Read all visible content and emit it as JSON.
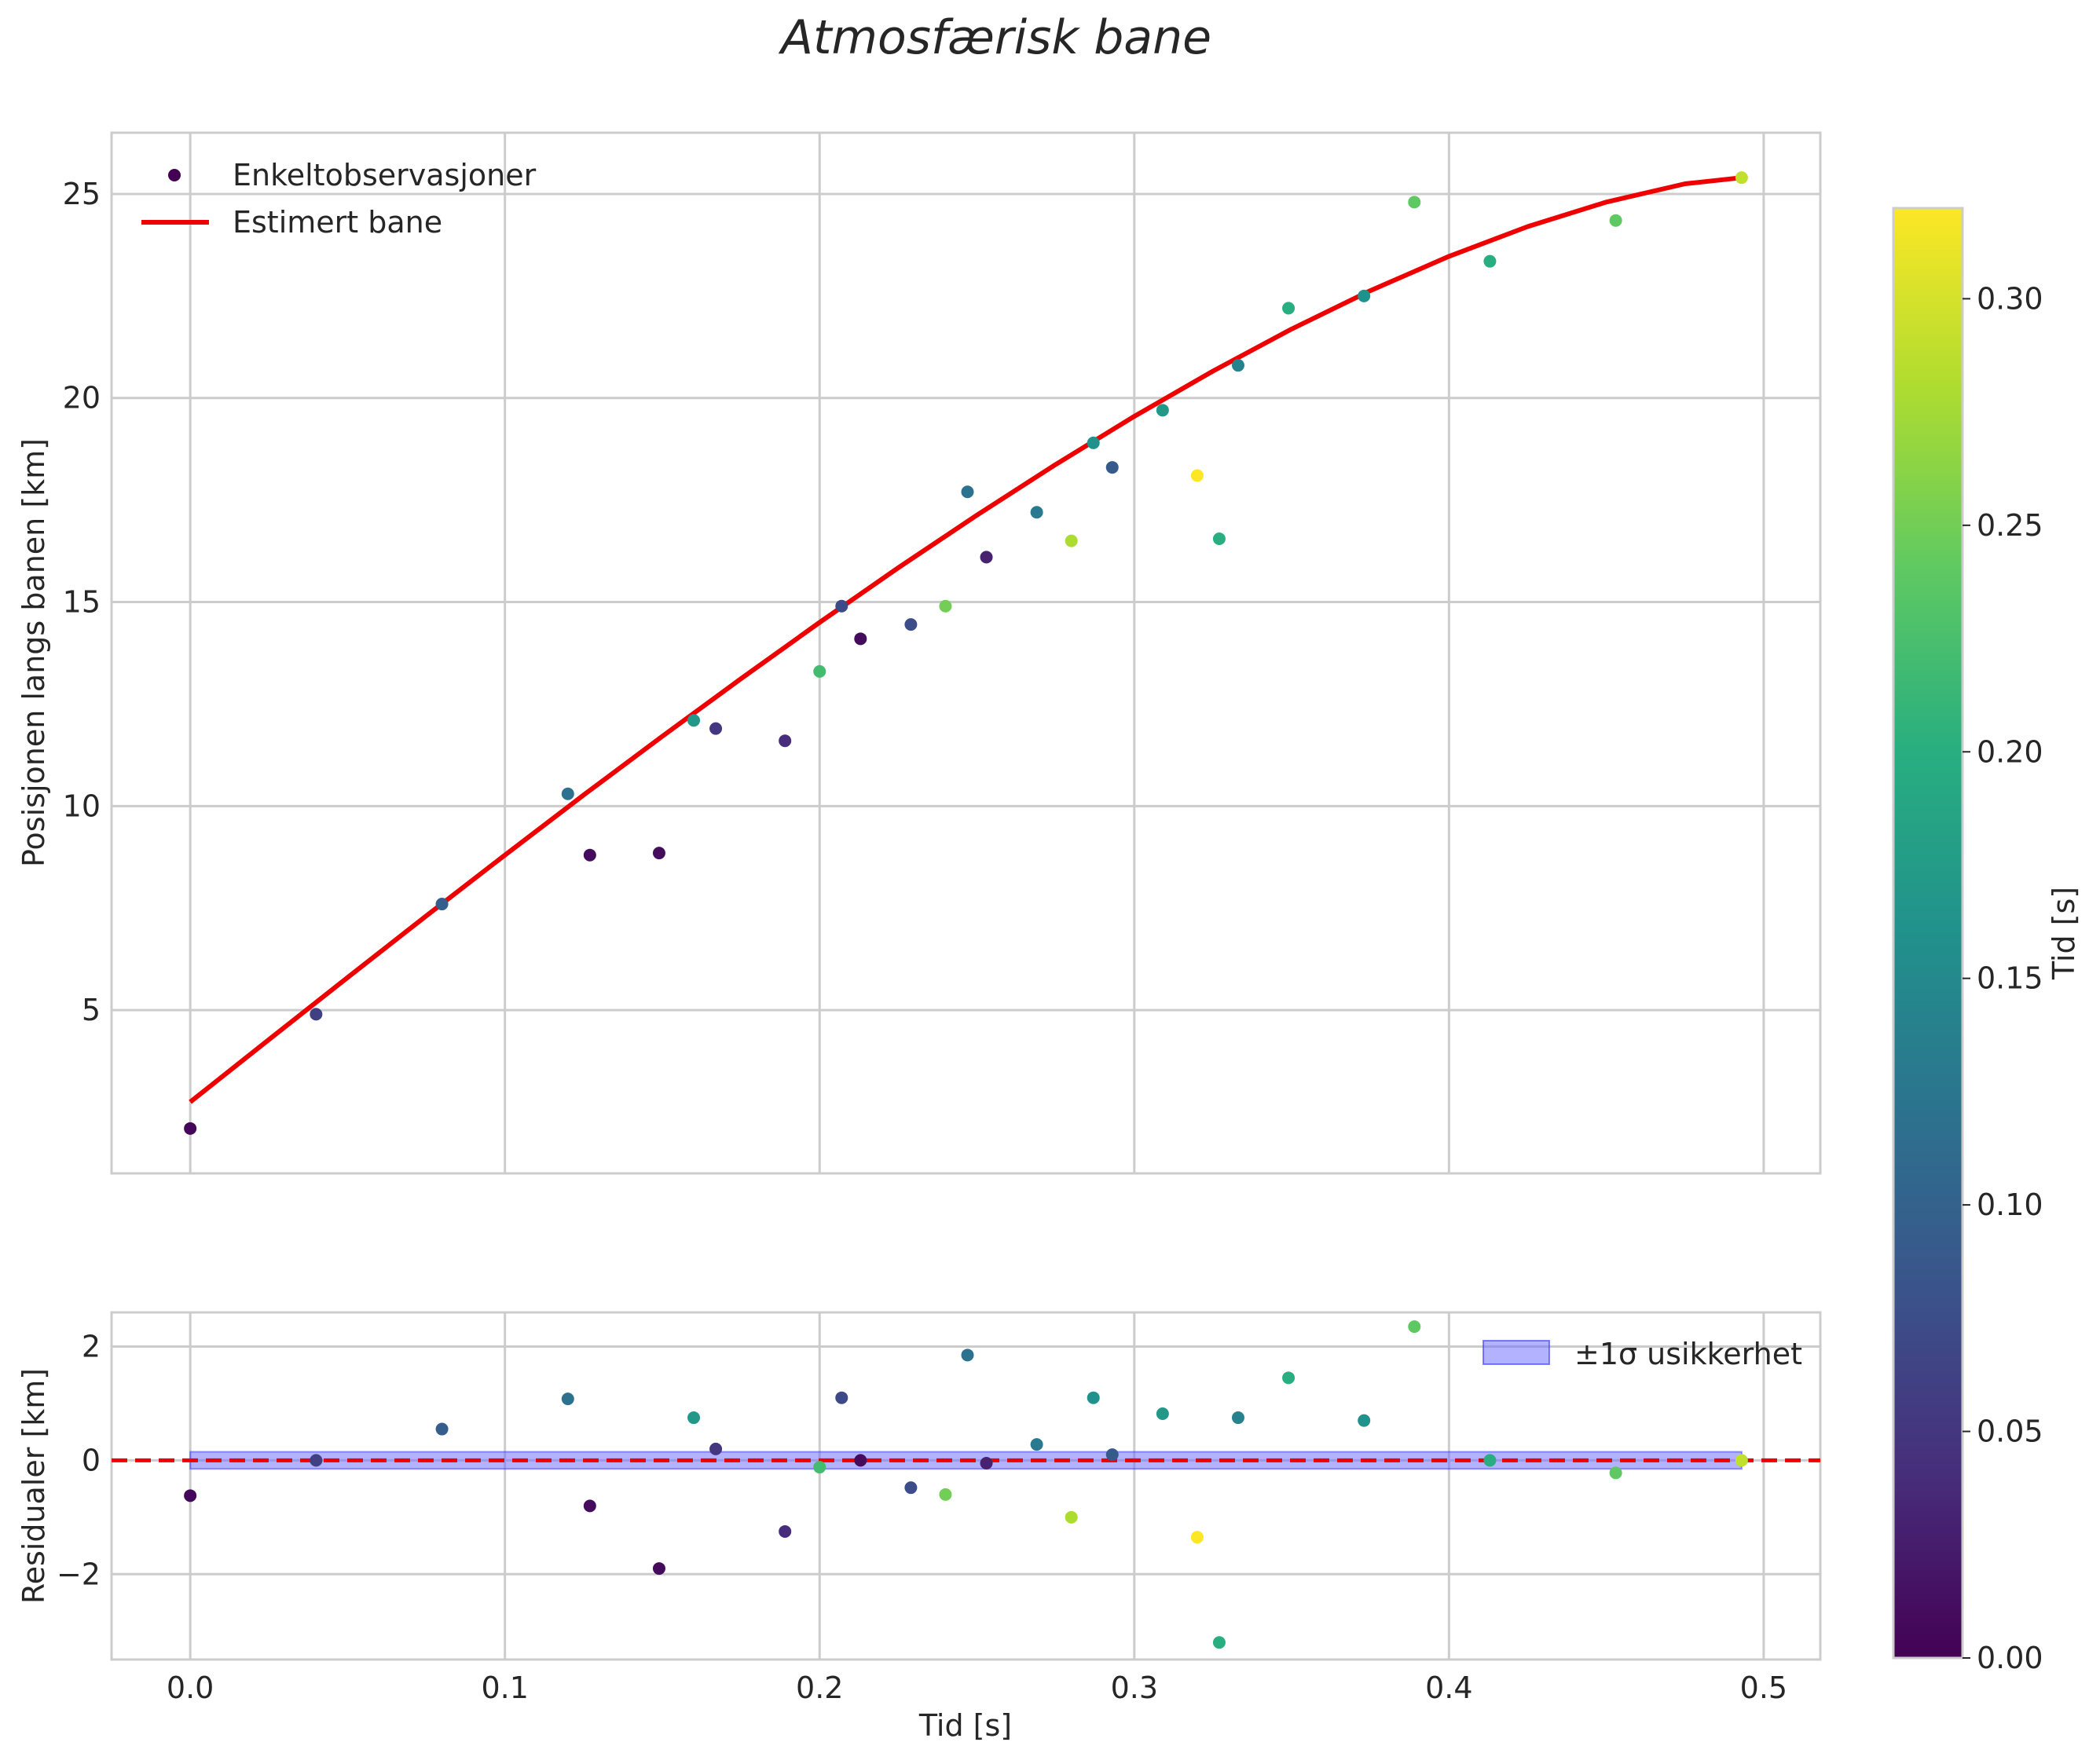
{
  "chart_data": {
    "title": "Atmosfærisk bane",
    "type": "scatter",
    "points": [
      {
        "t": 0.0,
        "pos": 2.1,
        "res": -0.62,
        "c": 0.005
      },
      {
        "t": 0.04,
        "pos": 4.9,
        "res": 0.0,
        "c": 0.06
      },
      {
        "t": 0.08,
        "pos": 7.6,
        "res": 0.55,
        "c": 0.095
      },
      {
        "t": 0.12,
        "pos": 10.3,
        "res": 1.08,
        "c": 0.12
      },
      {
        "t": 0.127,
        "pos": 8.8,
        "res": -0.8,
        "c": 0.01
      },
      {
        "t": 0.149,
        "pos": 8.85,
        "res": -1.9,
        "c": 0.01
      },
      {
        "t": 0.16,
        "pos": 12.1,
        "res": 0.75,
        "c": 0.17
      },
      {
        "t": 0.167,
        "pos": 11.9,
        "res": 0.2,
        "c": 0.05
      },
      {
        "t": 0.189,
        "pos": 11.6,
        "res": -1.25,
        "c": 0.04
      },
      {
        "t": 0.2,
        "pos": 13.3,
        "res": -0.12,
        "c": 0.22
      },
      {
        "t": 0.207,
        "pos": 14.9,
        "res": 1.1,
        "c": 0.07
      },
      {
        "t": 0.213,
        "pos": 14.1,
        "res": 0.0,
        "c": 0.01
      },
      {
        "t": 0.229,
        "pos": 14.45,
        "res": -0.48,
        "c": 0.075
      },
      {
        "t": 0.24,
        "pos": 14.9,
        "res": -0.6,
        "c": 0.25
      },
      {
        "t": 0.247,
        "pos": 17.7,
        "res": 1.85,
        "c": 0.12
      },
      {
        "t": 0.253,
        "pos": 16.1,
        "res": -0.05,
        "c": 0.03
      },
      {
        "t": 0.269,
        "pos": 17.2,
        "res": 0.28,
        "c": 0.13
      },
      {
        "t": 0.28,
        "pos": 16.5,
        "res": -1.0,
        "c": 0.28
      },
      {
        "t": 0.287,
        "pos": 18.9,
        "res": 1.1,
        "c": 0.16
      },
      {
        "t": 0.293,
        "pos": 18.3,
        "res": 0.1,
        "c": 0.09
      },
      {
        "t": 0.309,
        "pos": 19.7,
        "res": 0.82,
        "c": 0.17
      },
      {
        "t": 0.32,
        "pos": 18.1,
        "res": -1.35,
        "c": 0.32
      },
      {
        "t": 0.327,
        "pos": 16.55,
        "res": -3.2,
        "c": 0.2
      },
      {
        "t": 0.333,
        "pos": 20.8,
        "res": 0.75,
        "c": 0.14
      },
      {
        "t": 0.349,
        "pos": 22.2,
        "res": 1.45,
        "c": 0.2
      },
      {
        "t": 0.373,
        "pos": 22.5,
        "res": 0.7,
        "c": 0.16
      },
      {
        "t": 0.389,
        "pos": 24.8,
        "res": 2.35,
        "c": 0.24
      },
      {
        "t": 0.413,
        "pos": 23.35,
        "res": 0.0,
        "c": 0.2
      },
      {
        "t": 0.453,
        "pos": 24.35,
        "res": -0.22,
        "c": 0.24
      },
      {
        "t": 0.493,
        "pos": 25.4,
        "res": 0.0,
        "c": 0.29
      }
    ],
    "fit_curve": {
      "name": "Estimert bane",
      "x": [
        0.0,
        0.025,
        0.05,
        0.075,
        0.1,
        0.125,
        0.15,
        0.175,
        0.2,
        0.225,
        0.25,
        0.275,
        0.3,
        0.325,
        0.35,
        0.375,
        0.4,
        0.425,
        0.45,
        0.475,
        0.493
      ],
      "y": [
        2.75,
        4.28,
        5.8,
        7.31,
        8.8,
        10.27,
        11.71,
        13.12,
        14.5,
        15.84,
        17.13,
        18.37,
        19.55,
        20.66,
        21.69,
        22.63,
        23.47,
        24.2,
        24.8,
        25.25,
        25.4
      ]
    },
    "top": {
      "ylabel": "Posisjonen langs banen [km]",
      "ylim": [
        1.0,
        26.5
      ],
      "yticks": [
        "5",
        "10",
        "15",
        "20",
        "25"
      ],
      "legend": {
        "scatter": "Enkeltobservasjoner",
        "line": "Estimert bane"
      }
    },
    "bottom": {
      "ylabel": "Residualer [km]",
      "ylim": [
        -3.5,
        2.6
      ],
      "yticks": [
        "−2",
        "0",
        "2"
      ],
      "band_sigma": 0.15,
      "legend": {
        "band": "±1σ usikkerhet"
      }
    },
    "xlabel": "Tid [s]",
    "xlim": [
      -0.025,
      0.518
    ],
    "xticks": [
      "0.0",
      "0.1",
      "0.2",
      "0.3",
      "0.4",
      "0.5"
    ],
    "colorbar": {
      "label": "Tid [s]",
      "range": [
        0.0,
        0.32
      ],
      "ticks": [
        "0.00",
        "0.05",
        "0.10",
        "0.15",
        "0.20",
        "0.25",
        "0.30"
      ]
    }
  }
}
